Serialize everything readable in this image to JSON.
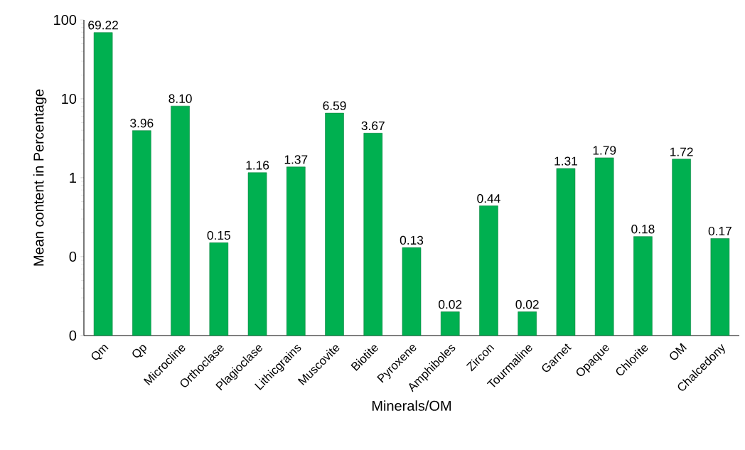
{
  "chart_data": {
    "type": "bar",
    "xlabel": "Minerals/OM",
    "ylabel": "Mean content in Percentage",
    "categories": [
      "Qm",
      "Qp",
      "Microcline",
      "Orthoclase",
      "Plagioclase",
      "Lithicgrains",
      "Muscovite",
      "Biotite",
      "Pyroxene",
      "Amphiboles",
      "Zircon",
      "Tourmaline",
      "Garnet",
      "Opaque",
      "Chlorite",
      "OM",
      "Chalcedony"
    ],
    "values": [
      69.22,
      3.96,
      8.1,
      0.15,
      1.16,
      1.37,
      6.59,
      3.67,
      0.13,
      0.02,
      0.44,
      0.02,
      1.31,
      1.79,
      0.18,
      1.72,
      0.17
    ],
    "value_labels": [
      "69.22",
      "3.96",
      "8.10",
      "0.15",
      "1.16",
      "1.37",
      "6.59",
      "3.67",
      "0.13",
      "0.02",
      "0.44",
      "0.02",
      "1.31",
      "1.79",
      "0.18",
      "1.72",
      "0.17"
    ],
    "color": "#00b050",
    "log": true,
    "ylim": [
      0.01,
      100
    ],
    "yticks": [
      {
        "value": 0.01,
        "label": "0"
      },
      {
        "value": 0.1,
        "label": "0"
      },
      1,
      10,
      100
    ]
  }
}
